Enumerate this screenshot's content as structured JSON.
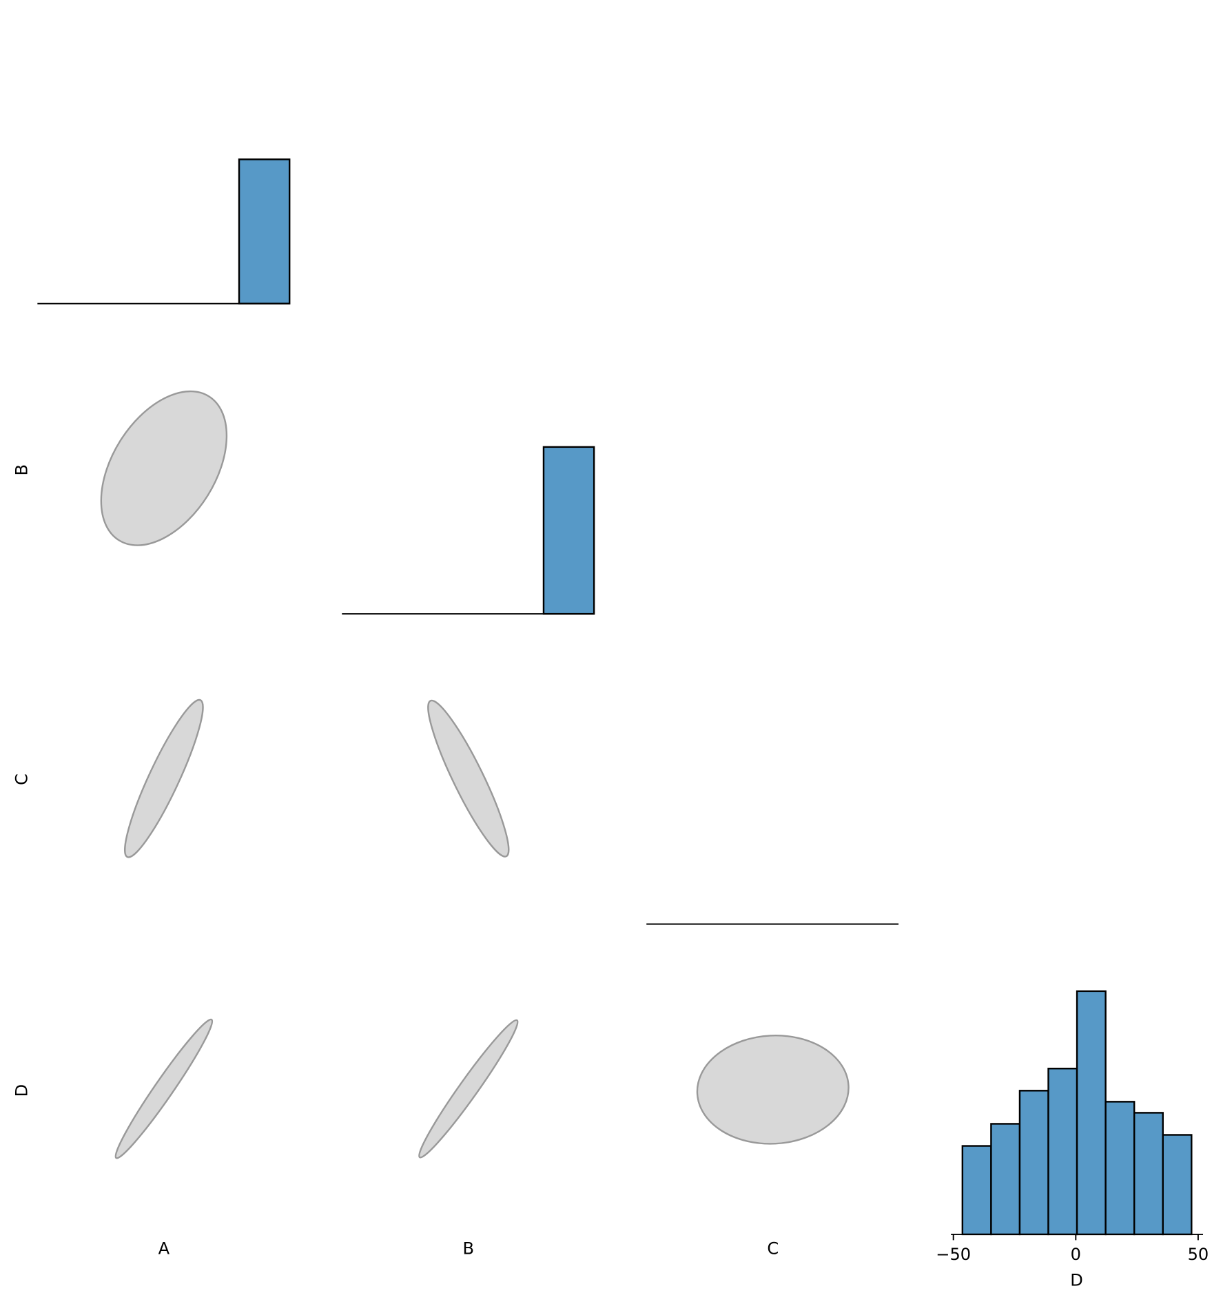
{
  "variables": [
    "A",
    "B",
    "C",
    "D"
  ],
  "chart_data": [
    {
      "type": "histogram",
      "bins": [
        0,
        1,
        2,
        3,
        4,
        5
      ],
      "counts": [
        0,
        0,
        0,
        0,
        100
      ],
      "ylim": [
        0,
        177
      ],
      "color": "#5799c7"
    },
    {
      "type": "histogram",
      "bins": [
        0,
        1,
        2,
        3,
        4,
        5
      ],
      "counts": [
        0,
        0,
        0,
        0,
        100
      ],
      "ylim": [
        0,
        153
      ],
      "color": "#5799c7"
    },
    {
      "type": "histogram",
      "bins": [
        0,
        1,
        2,
        3,
        4,
        5
      ],
      "counts": [
        0,
        0,
        0,
        0,
        0
      ],
      "ylim": [
        0,
        1
      ],
      "color": "#5799c7"
    },
    {
      "type": "histogram",
      "bins": [
        -46.3,
        -34.6,
        -22.9,
        -11.2,
        0.5,
        12.2,
        23.9,
        35.6,
        47.3
      ],
      "counts": [
        8,
        10,
        13,
        15,
        22,
        12,
        11,
        9
      ],
      "xlim": [
        -51,
        52
      ],
      "xticks": [
        {
          "value": -50,
          "label": "−50"
        },
        0,
        50
      ],
      "ylim": [
        0,
        23.1
      ],
      "color": "#5799c7"
    }
  ]
}
